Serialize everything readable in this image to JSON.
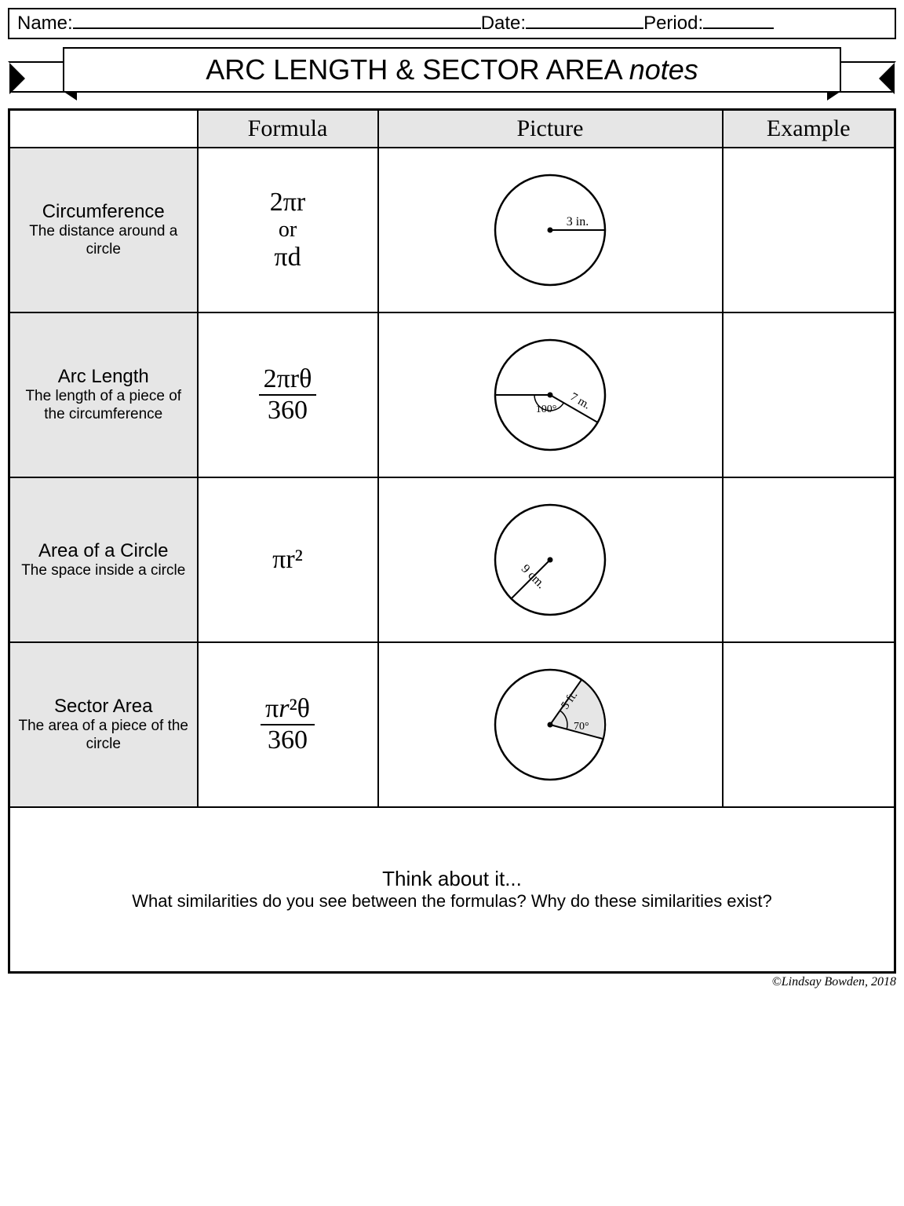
{
  "header": {
    "name_label": "Name:",
    "date_label": "Date:",
    "period_label": "Period:",
    "name_blank_width": 520,
    "date_blank_width": 150,
    "period_blank_width": 90
  },
  "banner": {
    "title_main": "ARC LENGTH & SECTOR AREA ",
    "title_cursive": "notes"
  },
  "columns": {
    "c1": "",
    "c2": "Formula",
    "c3": "Picture",
    "c4": "Example"
  },
  "rows": [
    {
      "term": "Circumference",
      "definition": "The distance around a circle",
      "formula_type": "dual",
      "formula_a": "2πr",
      "formula_or": "or",
      "formula_b": "πd",
      "picture": {
        "type": "radius",
        "label": "3 in.",
        "radius": 70
      }
    },
    {
      "term": "Arc Length",
      "definition": "The length of a piece of the circumference",
      "formula_type": "fraction",
      "formula_num": "2πrθ",
      "formula_den": "360",
      "picture": {
        "type": "arc",
        "label_r": "7 m.",
        "label_a": "100°",
        "angle": 100,
        "radius": 70
      }
    },
    {
      "term": "Area of a Circle",
      "definition": "The space inside a circle",
      "formula_type": "single",
      "formula_a": "πr²",
      "picture": {
        "type": "radius_diag",
        "label": "9 cm.",
        "radius": 70
      }
    },
    {
      "term": "Sector Area",
      "definition": "The area of a piece of the circle",
      "formula_type": "fraction_italic",
      "formula_num_a": "π",
      "formula_num_b": "r",
      "formula_num_c": "²θ",
      "formula_den": "360",
      "picture": {
        "type": "sector",
        "label_r": "5 ft.",
        "label_a": "70°",
        "angle": 70,
        "radius": 70
      }
    }
  ],
  "think": {
    "title": "Think about it...",
    "question": "What similarities do you see between the formulas? Why do these similarities exist?"
  },
  "copyright": "©Lindsay Bowden, 2018",
  "colors": {
    "header_bg": "#e6e6e6",
    "sector_fill": "#e6e6e6",
    "stroke": "#000000"
  }
}
